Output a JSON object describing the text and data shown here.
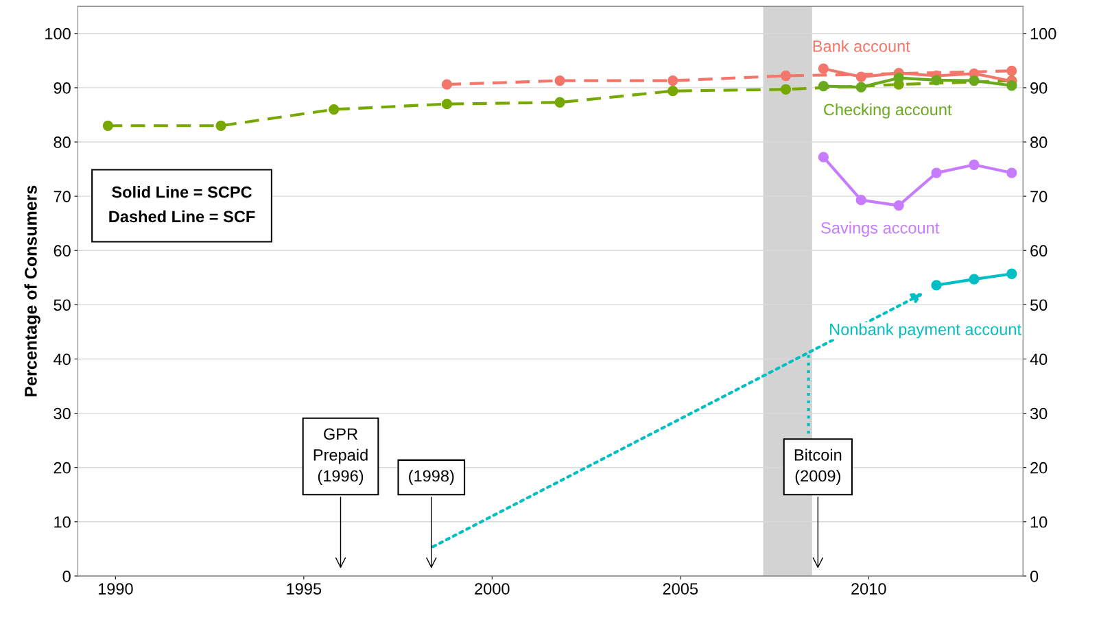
{
  "chart_data": {
    "type": "line",
    "ylabel": "Percentage of Consumers",
    "xlim": [
      1989,
      2014.1
    ],
    "xticks": [
      1990,
      1995,
      2000,
      2005,
      2010
    ],
    "ylim": [
      0,
      105
    ],
    "yticks": [
      0,
      10,
      20,
      30,
      40,
      50,
      60,
      70,
      80,
      90,
      100
    ],
    "y2lim": [
      0,
      105
    ],
    "y2ticks": [
      0,
      10,
      20,
      30,
      40,
      50,
      60,
      70,
      80,
      90,
      100
    ],
    "grid": "y",
    "marker": "circle",
    "bands": [
      {
        "axis": "x",
        "from": 2007.2,
        "to": 2008.5,
        "color": "#d3d3d3"
      }
    ],
    "series": [
      {
        "color": "#f4766b",
        "line_style": "dashed",
        "x": [
          1998.8,
          2001.8,
          2004.8,
          2007.8,
          2010.8,
          2013.8
        ],
        "values": [
          90.6,
          91.3,
          91.3,
          92.2,
          92.6,
          93.1
        ]
      },
      {
        "color": "#77a800",
        "line_style": "dashed",
        "x": [
          1989.8,
          1992.8,
          1995.8,
          1998.8,
          2001.8,
          2004.8,
          2007.8,
          2010.8,
          2013.8
        ],
        "values": [
          83.0,
          83.0,
          86.0,
          87.0,
          87.3,
          89.4,
          89.7,
          90.6,
          91.3
        ]
      },
      {
        "name": "Bank account",
        "color": "#f4766b",
        "line_style": "solid",
        "x": [
          2008.8,
          2009.8,
          2010.8,
          2011.8,
          2012.8,
          2013.8
        ],
        "values": [
          93.5,
          92.0,
          92.7,
          92.2,
          92.6,
          91.2
        ]
      },
      {
        "name": "Checking account",
        "color": "#6aa81e",
        "line_style": "solid",
        "x": [
          2008.8,
          2009.8,
          2010.8,
          2011.8,
          2012.8,
          2013.8
        ],
        "values": [
          90.3,
          90.1,
          91.8,
          91.4,
          91.3,
          90.4
        ]
      },
      {
        "name": "Savings account",
        "color": "#c77cff",
        "line_style": "solid",
        "x": [
          2008.8,
          2009.8,
          2010.8,
          2011.8,
          2012.8,
          2013.8
        ],
        "values": [
          77.2,
          69.3,
          68.3,
          74.3,
          75.8,
          74.3
        ]
      },
      {
        "name": "Nonbank payment account",
        "color": "#00bfc4",
        "line_style": "solid",
        "x": [
          2011.8,
          2012.8,
          2013.8
        ],
        "values": [
          53.6,
          54.7,
          55.7
        ]
      }
    ],
    "annotations": [
      "Solid Line = SCPC\nDashed Line = SCF",
      "GPR\nPrepaid\n(1996)",
      "(1998)",
      "Bitcoin\n(2009)"
    ]
  }
}
